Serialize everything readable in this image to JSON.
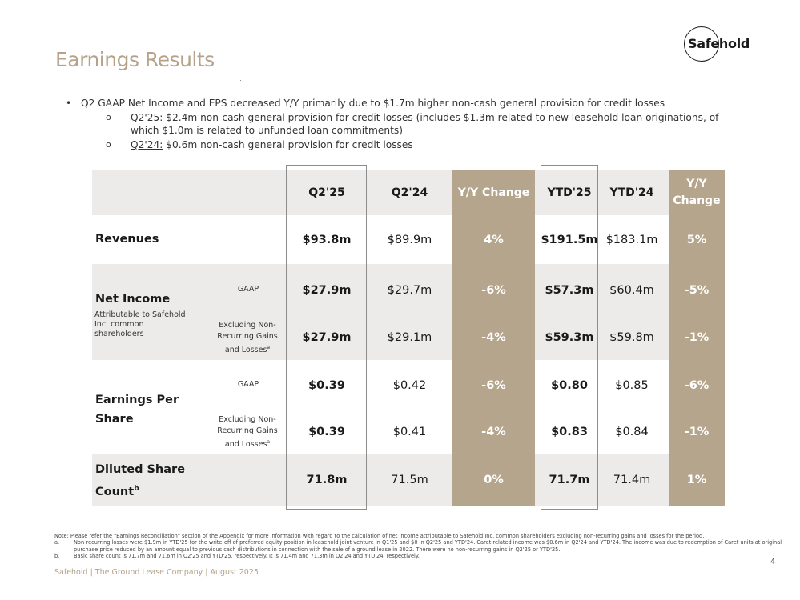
{
  "title": "Earnings Results",
  "logo": {
    "text": "Safehold"
  },
  "bullets": {
    "main": "Q2 GAAP Net Income and EPS decreased Y/Y primarily due to $1.7m higher non-cash general provision for credit losses",
    "sub1_label": "Q2'25:",
    "sub1_text": " $2.4m non-cash general provision for credit losses (includes $1.3m related to new leasehold loan originations, of which $1.0m is related to unfunded loan commitments)",
    "sub2_label": "Q2'24:",
    "sub2_text": " $0.6m non-cash general provision for credit losses",
    "marker": "o"
  },
  "table": {
    "headers": [
      "Q2'25",
      "Q2'24",
      "Y/Y Change",
      "YTD'25",
      "YTD'24",
      "Y/Y Change"
    ],
    "rows": {
      "revenues": {
        "label": "Revenues",
        "values": [
          "$93.8m",
          "$89.9m",
          "4%",
          "$191.5m",
          "$183.1m",
          "5%"
        ]
      },
      "net_income": {
        "label": "Net Income",
        "sublabel": "Attributable to Safehold Inc. common shareholders",
        "gaap_label": "GAAP",
        "excl_label": "Excluding Non-Recurring Gains and Losses",
        "excl_sup": "a",
        "gaap": [
          "$27.9m",
          "$29.7m",
          "-6%",
          "$57.3m",
          "$60.4m",
          "-5%"
        ],
        "excl": [
          "$27.9m",
          "$29.1m",
          "-4%",
          "$59.3m",
          "$59.8m",
          "-1%"
        ]
      },
      "eps": {
        "label": "Earnings Per Share",
        "gaap_label": "GAAP",
        "excl_label": "Excluding Non-Recurring Gains and Losses",
        "excl_sup": "a",
        "gaap": [
          "$0.39",
          "$0.42",
          "-6%",
          "$0.80",
          "$0.85",
          "-6%"
        ],
        "excl": [
          "$0.39",
          "$0.41",
          "-4%",
          "$0.83",
          "$0.84",
          "-1%"
        ]
      },
      "diluted": {
        "label": "Diluted Share Count",
        "sup": "b",
        "values": [
          "71.8m",
          "71.5m",
          "0%",
          "71.7m",
          "71.4m",
          "1%"
        ]
      }
    }
  },
  "notes": {
    "main": "Note: Please refer the \"Earnings Reconciliation\" section of the Appendix for more information with regard to the calculation of net income attributable to Safehold Inc. common shareholders excluding non-recurring gains and losses for the period.",
    "a_label": "a.",
    "a": "Non-recurring losses were $1.9m in YTD'25 for the write-off of preferred equity position in leasehold joint venture in Q1'25 and $0 in Q2'25 and YTD'24. Caret related income was $0.6m in Q2'24 and YTD'24. The income was due to redemption of Caret units at original purchase price reduced by an amount equal to previous cash distributions in connection with the sale of a ground lease in 2022. There were no non-recurring gains in Q2'25 or YTD'25.",
    "b_label": "b.",
    "b": "Basic share count is 71.7m and 71.6m in Q2'25 and YTD'25, respectively. It is 71.4m and 71.3m in Q2'24 and YTD'24, respectively."
  },
  "footer": "Safehold | The Ground Lease Company | August 2025",
  "page_number": "4",
  "colors": {
    "gold": "#b5a58c",
    "title": "#b5a288",
    "grey": "#ecebe9"
  }
}
